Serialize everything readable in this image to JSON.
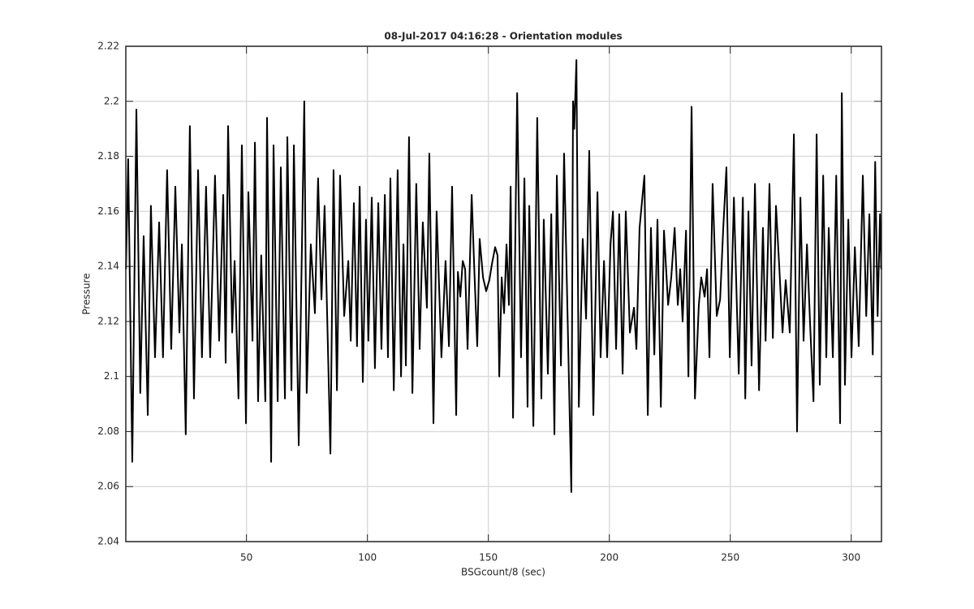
{
  "chart_data": {
    "type": "line",
    "title": "08-Jul-2017 04:16:28 - Orientation modules",
    "x_label": "BSGcount/8 (sec)",
    "y_label": "Pressure",
    "color": "#000000",
    "grid": true,
    "xlim": [
      0.125,
      312.5
    ],
    "xticks": [
      50,
      100,
      150,
      200,
      250,
      300
    ],
    "ylim": [
      2.04,
      2.22
    ],
    "yticks": [
      2.04,
      2.06,
      2.08,
      2.1,
      2.12,
      2.14,
      2.16,
      2.18,
      2.2,
      2.22
    ],
    "x": [
      0.2,
      1.1,
      2.8,
      4.5,
      6.1,
      7.5,
      9.2,
      10.5,
      12.2,
      13.9,
      15.5,
      17.2,
      18.9,
      20.6,
      22.3,
      23.3,
      24.9,
      26.6,
      28.3,
      30.0,
      31.6,
      33.3,
      35.0,
      37.0,
      38.7,
      40.4,
      41.4,
      42.4,
      44.1,
      45.1,
      46.7,
      48.1,
      49.8,
      50.8,
      52.5,
      53.5,
      54.8,
      56.1,
      57.8,
      58.5,
      60.2,
      61.2,
      62.9,
      64.2,
      65.9,
      66.9,
      68.6,
      69.6,
      71.6,
      73.9,
      74.9,
      76.6,
      78.3,
      79.6,
      81.0,
      82.3,
      84.7,
      86.0,
      87.4,
      88.7,
      90.4,
      92.1,
      93.1,
      94.4,
      95.7,
      96.8,
      98.1,
      99.4,
      100.4,
      101.8,
      103.1,
      104.5,
      105.8,
      107.2,
      108.5,
      109.5,
      110.9,
      112.5,
      113.9,
      114.9,
      115.9,
      117.2,
      118.6,
      120.2,
      121.6,
      122.9,
      124.6,
      125.6,
      127.3,
      128.6,
      130.6,
      132.3,
      133.7,
      135.0,
      136.7,
      137.4,
      138.4,
      139.4,
      140.4,
      141.4,
      143.1,
      144.1,
      145.4,
      146.4,
      147.8,
      149.1,
      150.4,
      151.5,
      152.8,
      153.8,
      154.5,
      155.5,
      156.5,
      157.5,
      158.5,
      159.2,
      160.2,
      161.9,
      163.5,
      164.9,
      166.2,
      166.9,
      168.6,
      170.2,
      171.9,
      172.9,
      174.6,
      176.0,
      177.3,
      178.3,
      180.0,
      181.3,
      184.3,
      185.0,
      185.5,
      186.4,
      187.4,
      189.0,
      190.4,
      191.7,
      193.4,
      195.1,
      196.4,
      197.8,
      199.1,
      200.5,
      201.5,
      202.8,
      204.1,
      205.5,
      206.8,
      208.5,
      210.2,
      211.2,
      212.5,
      214.5,
      215.9,
      217.2,
      218.6,
      219.9,
      221.3,
      222.6,
      224.3,
      225.6,
      227.0,
      228.3,
      229.3,
      230.3,
      231.7,
      232.7,
      234.0,
      235.4,
      237.0,
      238.0,
      239.4,
      240.4,
      241.4,
      242.7,
      244.4,
      245.8,
      247.1,
      248.4,
      249.8,
      251.5,
      253.5,
      255.2,
      256.2,
      257.5,
      258.8,
      260.2,
      261.9,
      263.5,
      264.6,
      266.2,
      267.6,
      268.9,
      270.3,
      271.6,
      272.9,
      274.6,
      276.3,
      277.6,
      279.0,
      280.3,
      281.7,
      283.0,
      284.4,
      285.7,
      287.0,
      288.4,
      289.7,
      290.7,
      292.4,
      293.8,
      295.4,
      296.1,
      297.4,
      298.8,
      300.1,
      301.5,
      303.1,
      304.8,
      306.2,
      307.5,
      308.9,
      309.9,
      310.9,
      311.9,
      312.4
    ],
    "values": [
      2.139,
      2.179,
      2.069,
      2.197,
      2.094,
      2.151,
      2.086,
      2.162,
      2.107,
      2.156,
      2.107,
      2.175,
      2.11,
      2.169,
      2.116,
      2.148,
      2.079,
      2.191,
      2.092,
      2.175,
      2.107,
      2.169,
      2.107,
      2.173,
      2.113,
      2.166,
      2.105,
      2.191,
      2.116,
      2.142,
      2.092,
      2.184,
      2.083,
      2.167,
      2.113,
      2.185,
      2.091,
      2.144,
      2.091,
      2.194,
      2.069,
      2.184,
      2.091,
      2.176,
      2.092,
      2.187,
      2.095,
      2.184,
      2.075,
      2.2,
      2.094,
      2.148,
      2.123,
      2.172,
      2.128,
      2.162,
      2.072,
      2.175,
      2.095,
      2.173,
      2.122,
      2.142,
      2.113,
      2.163,
      2.111,
      2.169,
      2.098,
      2.157,
      2.113,
      2.165,
      2.103,
      2.163,
      2.11,
      2.166,
      2.107,
      2.172,
      2.095,
      2.175,
      2.1,
      2.148,
      2.104,
      2.187,
      2.094,
      2.17,
      2.11,
      2.156,
      2.125,
      2.181,
      2.083,
      2.16,
      2.107,
      2.142,
      2.111,
      2.169,
      2.086,
      2.138,
      2.129,
      2.142,
      2.139,
      2.11,
      2.166,
      2.141,
      2.111,
      2.15,
      2.136,
      2.131,
      2.135,
      2.141,
      2.147,
      2.144,
      2.1,
      2.136,
      2.123,
      2.148,
      2.126,
      2.169,
      2.085,
      2.203,
      2.107,
      2.172,
      2.089,
      2.162,
      2.082,
      2.194,
      2.092,
      2.157,
      2.101,
      2.159,
      2.079,
      2.173,
      2.104,
      2.181,
      2.058,
      2.2,
      2.19,
      2.215,
      2.089,
      2.15,
      2.121,
      2.182,
      2.086,
      2.167,
      2.107,
      2.142,
      2.107,
      2.148,
      2.16,
      2.11,
      2.159,
      2.101,
      2.16,
      2.116,
      2.125,
      2.11,
      2.154,
      2.173,
      2.086,
      2.154,
      2.108,
      2.157,
      2.089,
      2.153,
      2.126,
      2.136,
      2.154,
      2.126,
      2.139,
      2.12,
      2.153,
      2.1,
      2.198,
      2.092,
      2.126,
      2.136,
      2.129,
      2.139,
      2.107,
      2.17,
      2.122,
      2.128,
      2.154,
      2.176,
      2.107,
      2.165,
      2.101,
      2.165,
      2.092,
      2.16,
      2.104,
      2.17,
      2.095,
      2.154,
      2.113,
      2.17,
      2.114,
      2.162,
      2.139,
      2.116,
      2.135,
      2.116,
      2.188,
      2.08,
      2.165,
      2.113,
      2.148,
      2.119,
      2.091,
      2.188,
      2.097,
      2.173,
      2.107,
      2.154,
      2.107,
      2.173,
      2.083,
      2.203,
      2.097,
      2.157,
      2.107,
      2.147,
      2.111,
      2.173,
      2.122,
      2.159,
      2.108,
      2.178,
      2.122,
      2.159,
      2.139
    ]
  }
}
